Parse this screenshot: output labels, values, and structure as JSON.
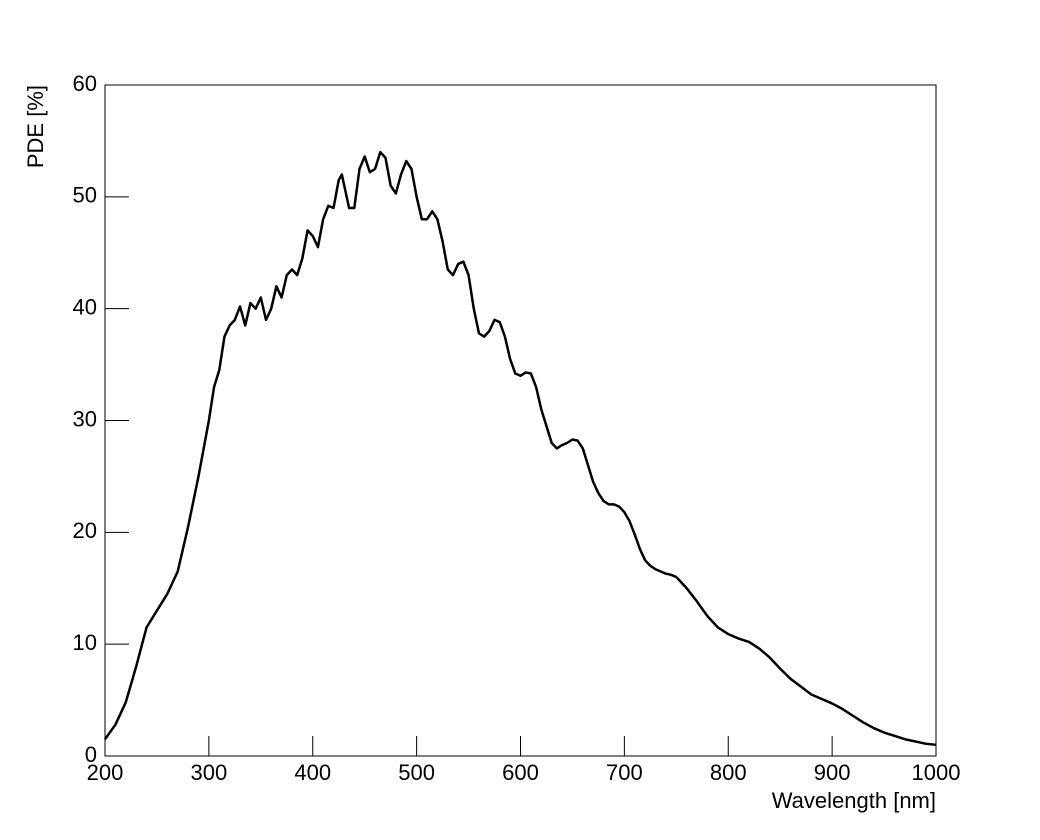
{
  "chart_data": {
    "type": "line",
    "xlabel": "Wavelength [nm]",
    "ylabel": "PDE [%]",
    "x": [
      200,
      210,
      220,
      230,
      240,
      250,
      260,
      270,
      280,
      290,
      300,
      305,
      310,
      315,
      320,
      325,
      330,
      335,
      340,
      345,
      350,
      355,
      360,
      365,
      370,
      375,
      380,
      385,
      390,
      395,
      400,
      405,
      410,
      415,
      420,
      425,
      428,
      435,
      440,
      445,
      450,
      455,
      460,
      465,
      470,
      475,
      480,
      485,
      490,
      495,
      500,
      505,
      510,
      515,
      520,
      525,
      530,
      535,
      540,
      545,
      550,
      555,
      560,
      565,
      570,
      575,
      580,
      585,
      590,
      595,
      600,
      605,
      610,
      615,
      620,
      625,
      630,
      635,
      640,
      645,
      650,
      655,
      660,
      665,
      670,
      675,
      680,
      685,
      690,
      695,
      700,
      705,
      710,
      715,
      720,
      725,
      730,
      735,
      740,
      745,
      750,
      755,
      760,
      770,
      780,
      790,
      800,
      810,
      820,
      830,
      840,
      850,
      860,
      870,
      880,
      890,
      900,
      910,
      920,
      930,
      940,
      950,
      960,
      970,
      980,
      990,
      1000
    ],
    "series": [
      {
        "color": "#000000",
        "values": [
          1.5,
          2.8,
          4.8,
          8,
          11.5,
          13,
          14.5,
          16.5,
          20.5,
          25,
          30,
          33,
          34.5,
          37.5,
          38.5,
          39,
          40.2,
          38.5,
          40.5,
          40,
          41,
          39,
          40,
          42,
          41,
          43,
          43.5,
          43,
          44.5,
          47,
          46.5,
          45.5,
          48,
          49.2,
          49,
          51.5,
          52,
          49,
          49,
          52.5,
          53.6,
          52.2,
          52.5,
          54,
          53.5,
          51,
          50.3,
          52,
          53.2,
          52.5,
          50,
          48,
          48,
          48.7,
          48,
          46,
          43.5,
          43,
          44,
          44.2,
          43,
          40,
          37.8,
          37.5,
          38,
          39,
          38.8,
          37.5,
          35.5,
          34.2,
          34,
          34.3,
          34.2,
          33,
          31,
          29.5,
          28,
          27.5,
          27.8,
          28,
          28.3,
          28.2,
          27.5,
          26,
          24.5,
          23.5,
          22.8,
          22.5,
          22.5,
          22.3,
          21.8,
          21,
          19.8,
          18.5,
          17.5,
          17,
          16.7,
          16.5,
          16.3,
          16.2,
          16,
          15.5,
          15,
          13.8,
          12.5,
          11.5,
          10.9,
          10.5,
          10.2,
          9.6,
          8.8,
          7.8,
          6.9,
          6.2,
          5.5,
          5.1,
          4.7,
          4.2,
          3.6,
          3,
          2.5,
          2.1,
          1.8,
          1.5,
          1.3,
          1.1,
          1.0
        ]
      }
    ],
    "xlim": [
      200,
      1000
    ],
    "xticks": [
      200,
      300,
      400,
      500,
      600,
      700,
      800,
      900,
      1000
    ],
    "ylim": [
      0,
      60
    ],
    "yticks": [
      0,
      10,
      20,
      30,
      40,
      50,
      60
    ]
  }
}
